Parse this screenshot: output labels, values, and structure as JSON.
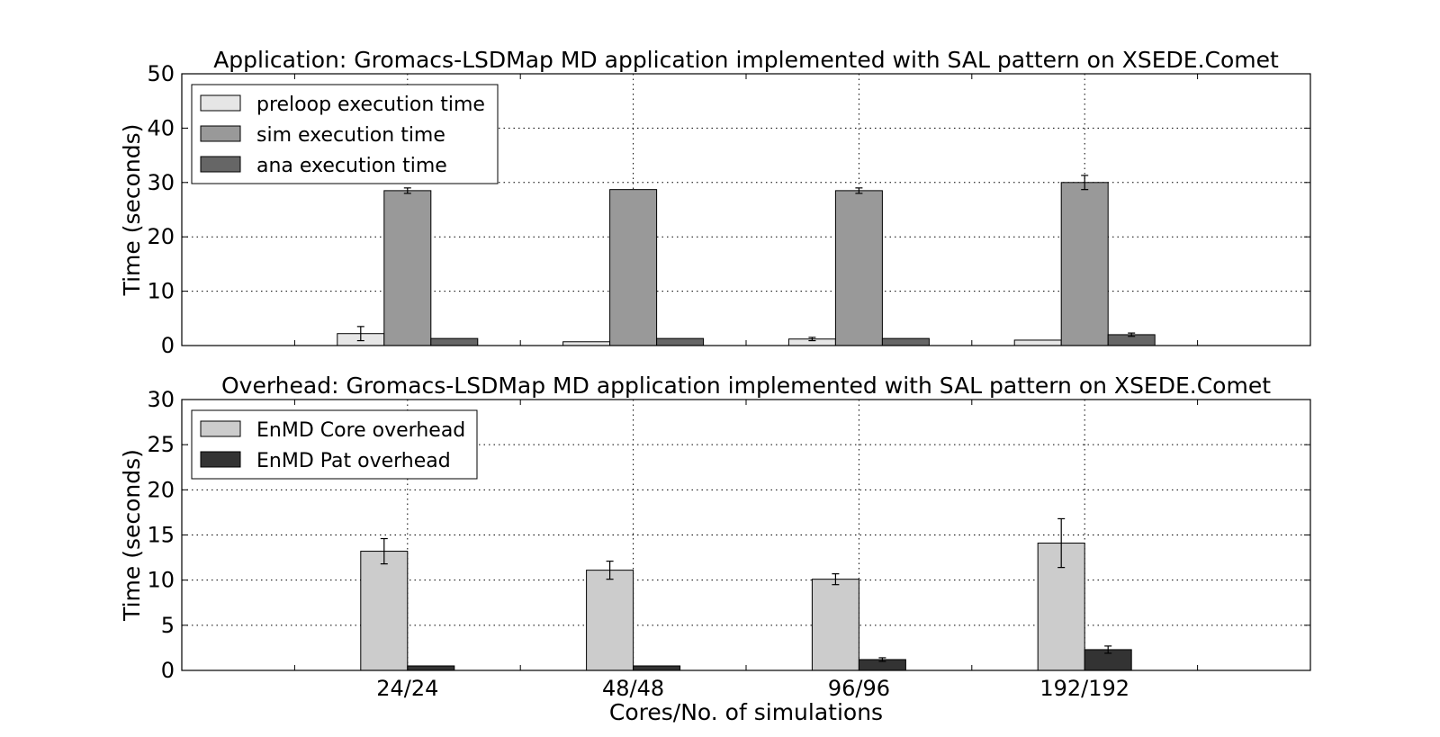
{
  "chart_data": [
    {
      "type": "bar",
      "title": "Application: Gromacs-LSDMap MD application implemented with SAL pattern on XSEDE.Comet",
      "xlabel": "",
      "ylabel": "Time (seconds)",
      "ylim": [
        0,
        50
      ],
      "yticks": [
        "0",
        "10",
        "20",
        "30",
        "40",
        "50"
      ],
      "grid": true,
      "legend_position": "top-left",
      "categories": [
        "24/24",
        "48/48",
        "96/96",
        "192/192"
      ],
      "series": [
        {
          "name": "preloop execution time",
          "color": "#e6e6e6",
          "values": [
            2.2,
            0.7,
            1.2,
            1.0
          ],
          "errors": [
            1.3,
            0,
            0.3,
            0
          ]
        },
        {
          "name": "sim execution time",
          "color": "#999999",
          "values": [
            28.5,
            28.7,
            28.5,
            30.0
          ],
          "errors": [
            0.5,
            0,
            0.5,
            1.3
          ]
        },
        {
          "name": "ana execution time",
          "color": "#666666",
          "values": [
            1.3,
            1.3,
            1.3,
            2.0
          ],
          "errors": [
            0,
            0,
            0,
            0.3
          ]
        }
      ]
    },
    {
      "type": "bar",
      "title": "Overhead: Gromacs-LSDMap MD application implemented with SAL pattern on XSEDE.Comet",
      "xlabel": "Cores/No. of simulations",
      "ylabel": "Time (seconds)",
      "ylim": [
        0,
        30
      ],
      "yticks": [
        "0",
        "5",
        "10",
        "15",
        "20",
        "25",
        "30"
      ],
      "grid": true,
      "legend_position": "top-left",
      "categories": [
        "24/24",
        "48/48",
        "96/96",
        "192/192"
      ],
      "series": [
        {
          "name": "EnMD Core overhead",
          "color": "#cccccc",
          "values": [
            13.2,
            11.1,
            10.1,
            14.1
          ],
          "errors": [
            1.4,
            1.0,
            0.6,
            2.7
          ]
        },
        {
          "name": "EnMD Pat overhead",
          "color": "#333333",
          "values": [
            0.5,
            0.5,
            1.2,
            2.3
          ],
          "errors": [
            0,
            0,
            0.2,
            0.4
          ]
        }
      ]
    }
  ]
}
